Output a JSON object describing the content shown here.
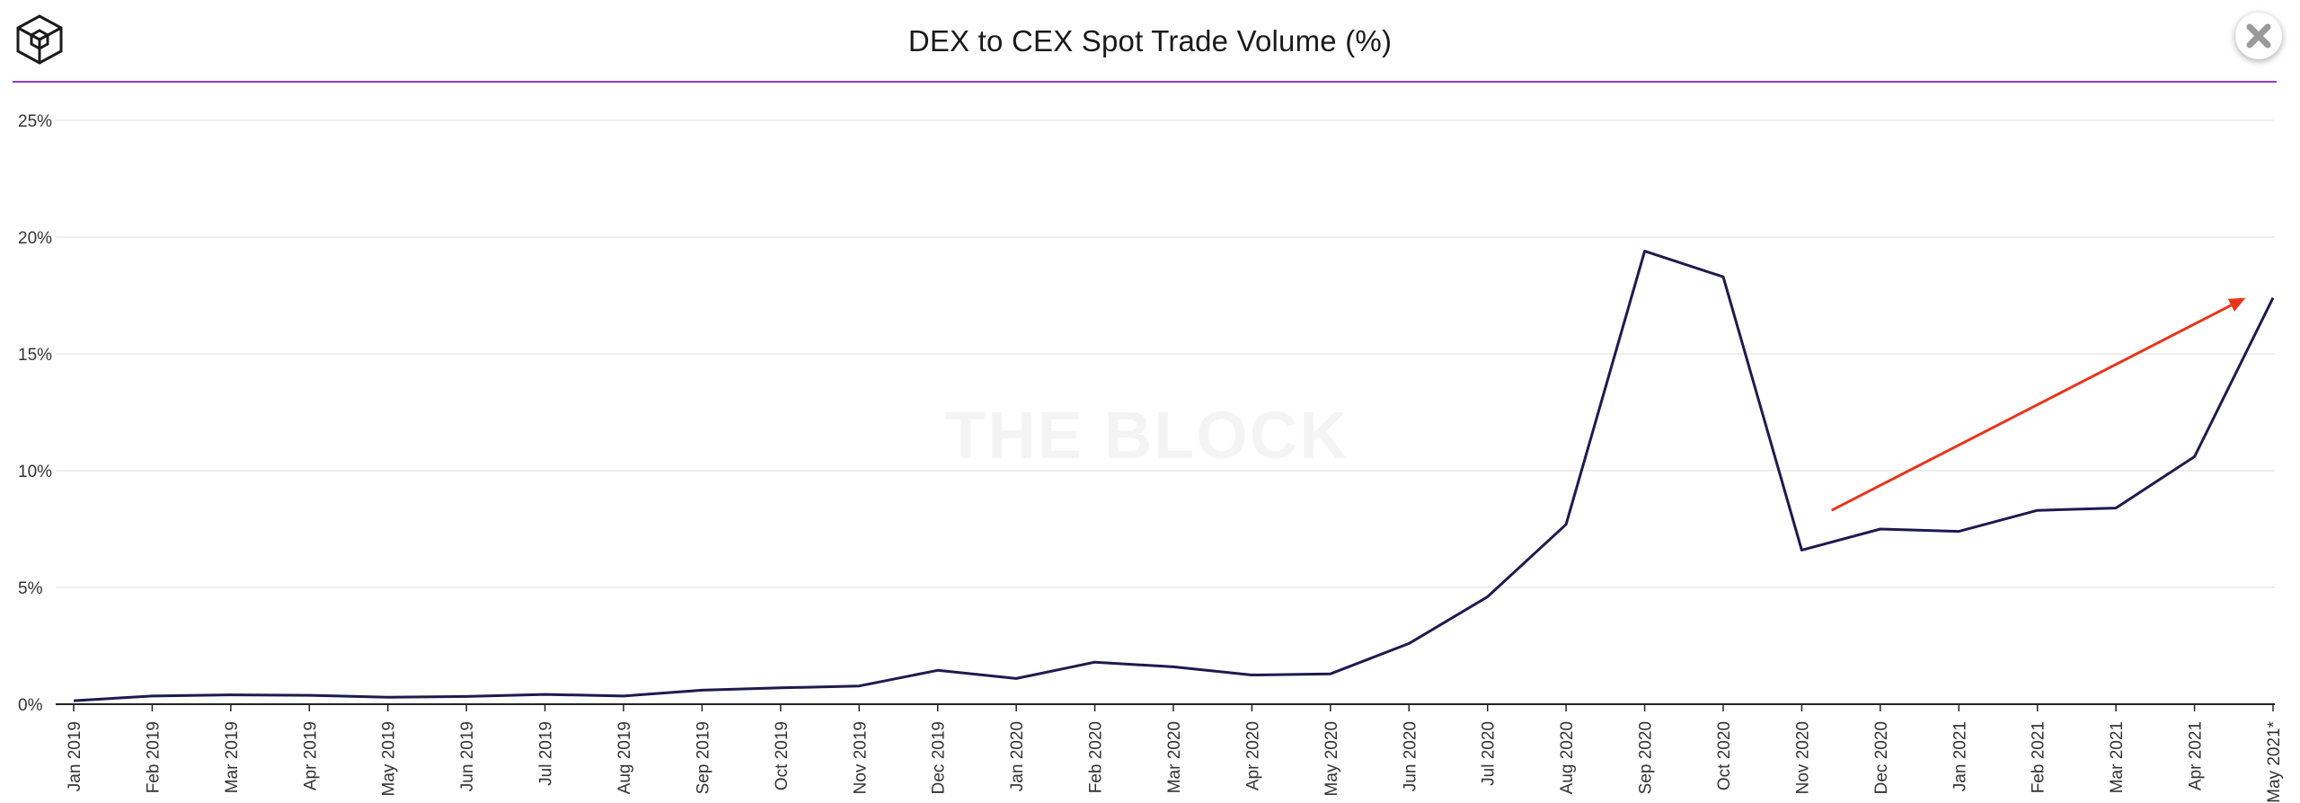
{
  "header": {
    "title": "DEX to CEX Spot Trade Volume (%)",
    "watermark": "THE BLOCK"
  },
  "icons": {
    "logo": "the-block-cube-logo",
    "close": "close-icon"
  },
  "colors": {
    "line": "#1f1a4e",
    "arrow": "#e8361c",
    "divider": "#8a3fd1",
    "grid": "#e8e8e8"
  },
  "chart_data": {
    "type": "line",
    "title": "DEX to CEX Spot Trade Volume (%)",
    "xlabel": "",
    "ylabel": "",
    "ylim": [
      0,
      25
    ],
    "yticks": [
      "0%",
      "5%",
      "10%",
      "15%",
      "20%",
      "25%"
    ],
    "yticks_values": [
      0,
      5,
      10,
      15,
      20,
      25
    ],
    "grid": true,
    "categories": [
      "Jan 2019",
      "Feb 2019",
      "Mar 2019",
      "Apr 2019",
      "May 2019",
      "Jun 2019",
      "Jul 2019",
      "Aug 2019",
      "Sep 2019",
      "Oct 2019",
      "Nov 2019",
      "Dec 2019",
      "Jan 2020",
      "Feb 2020",
      "Mar 2020",
      "Apr 2020",
      "May 2020",
      "Jun 2020",
      "Jul 2020",
      "Aug 2020",
      "Sep 2020",
      "Oct 2020",
      "Nov 2020",
      "Dec 2020",
      "Jan 2021",
      "Feb 2021",
      "Mar 2021",
      "Apr 2021",
      "May 2021*"
    ],
    "values": [
      0.15,
      0.35,
      0.4,
      0.38,
      0.3,
      0.33,
      0.42,
      0.35,
      0.6,
      0.7,
      0.78,
      1.45,
      1.1,
      1.8,
      1.6,
      1.25,
      1.3,
      2.6,
      4.6,
      7.7,
      19.4,
      18.3,
      6.6,
      7.5,
      7.4,
      8.3,
      8.4,
      10.6,
      17.4
    ],
    "annotation": {
      "type": "trend-arrow",
      "from": {
        "x": "Nov 2020",
        "offset": 0.38,
        "y": 8.3
      },
      "to": {
        "x": "Apr 2021",
        "offset": 0.65,
        "y": 17.4
      }
    }
  }
}
